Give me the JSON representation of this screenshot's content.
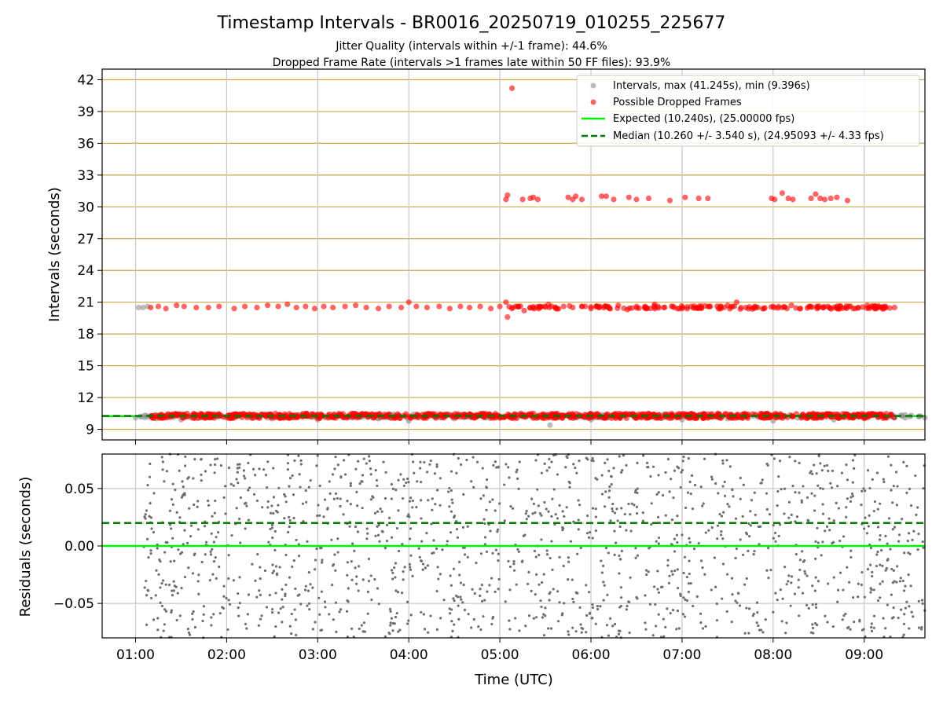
{
  "title": "Timestamp Intervals - BR0016_20250719_010255_225677",
  "subtitle_lines": [
    "Jitter Quality (intervals within +/-1 frame): 44.6%",
    "Dropped Frame Rate (intervals >1 frames late within 50 FF files): 93.9%"
  ],
  "colors": {
    "intervals": "#8f8f8f",
    "dropped": "#ff0000",
    "expected": "#00ee00",
    "median": "#007a00",
    "hgrid": "#c8a84a",
    "vgrid": "#c8c8c8",
    "residuals": "#6e6e6e"
  },
  "chart_data": [
    {
      "type": "scatter",
      "name": "intervals",
      "xlim": [
        "00:38",
        "09:40"
      ],
      "ylim": [
        8,
        43
      ],
      "ylabel": "Intervals (seconds)",
      "y_ticks": [
        "9",
        "12",
        "15",
        "18",
        "21",
        "24",
        "27",
        "30",
        "33",
        "36",
        "39",
        "42"
      ],
      "hgrid": true,
      "vgrid": true,
      "legend_position": "top-right",
      "legend": [
        "Intervals, max (41.245s), min (9.396s)",
        "Possible Dropped Frames",
        "Expected (10.240s), (25.00000 fps)",
        "Median (10.260 +/- 3.540 s), (24.95093 +/- 4.33 fps)"
      ],
      "expected_value": 10.24,
      "median_value": 10.26,
      "intervals_points": [
        [
          "01:02",
          20.5
        ],
        [
          "01:05",
          20.5
        ],
        [
          "01:08",
          20.6
        ],
        [
          "01:00",
          10.1
        ],
        [
          "01:06",
          10.3
        ],
        [
          "01:14",
          10.0
        ],
        [
          "01:30",
          9.9
        ],
        [
          "02:30",
          10.0
        ],
        [
          "03:00",
          9.9
        ],
        [
          "03:40",
          10.0
        ],
        [
          "04:00",
          9.8
        ],
        [
          "04:30",
          10.0
        ],
        [
          "05:10",
          10.0
        ],
        [
          "05:33",
          9.4
        ],
        [
          "06:00",
          9.9
        ],
        [
          "06:30",
          10.1
        ],
        [
          "07:00",
          9.9
        ],
        [
          "07:30",
          10.0
        ],
        [
          "08:00",
          9.8
        ],
        [
          "08:40",
          9.9
        ],
        [
          "09:00",
          10.0
        ],
        [
          "09:20",
          10.1
        ],
        [
          "09:30",
          10.2
        ],
        [
          "09:36",
          10.2
        ],
        [
          "09:40",
          10.1
        ]
      ],
      "dropped_points": [
        [
          "01:10",
          20.5
        ],
        [
          "01:15",
          20.6
        ],
        [
          "01:20",
          20.4
        ],
        [
          "01:27",
          20.7
        ],
        [
          "01:32",
          20.6
        ],
        [
          "01:40",
          20.5
        ],
        [
          "01:48",
          20.5
        ],
        [
          "01:55",
          20.6
        ],
        [
          "02:05",
          20.4
        ],
        [
          "02:12",
          20.6
        ],
        [
          "02:20",
          20.5
        ],
        [
          "02:27",
          20.7
        ],
        [
          "02:34",
          20.6
        ],
        [
          "02:40",
          20.8
        ],
        [
          "02:46",
          20.5
        ],
        [
          "02:52",
          20.6
        ],
        [
          "02:58",
          20.4
        ],
        [
          "03:04",
          20.6
        ],
        [
          "03:10",
          20.5
        ],
        [
          "03:18",
          20.6
        ],
        [
          "03:25",
          20.7
        ],
        [
          "03:32",
          20.5
        ],
        [
          "03:40",
          20.4
        ],
        [
          "03:47",
          20.6
        ],
        [
          "03:55",
          20.5
        ],
        [
          "04:00",
          21.0
        ],
        [
          "04:05",
          20.6
        ],
        [
          "04:12",
          20.5
        ],
        [
          "04:20",
          20.6
        ],
        [
          "04:27",
          20.4
        ],
        [
          "04:34",
          20.6
        ],
        [
          "04:40",
          20.5
        ],
        [
          "04:47",
          20.6
        ],
        [
          "04:54",
          20.4
        ],
        [
          "05:00",
          20.6
        ],
        [
          "05:04",
          21.0
        ],
        [
          "05:05",
          19.6
        ],
        [
          "05:08",
          20.4
        ],
        [
          "05:12",
          20.6
        ],
        [
          "05:16",
          20.2
        ],
        [
          "05:20",
          20.5
        ],
        [
          "05:26",
          20.6
        ],
        [
          "05:32",
          20.8
        ],
        [
          "05:37",
          20.4
        ],
        [
          "05:42",
          20.6
        ],
        [
          "05:48",
          20.5
        ],
        [
          "05:54",
          20.6
        ],
        [
          "06:00",
          20.4
        ],
        [
          "06:06",
          20.6
        ],
        [
          "06:12",
          20.5
        ],
        [
          "06:18",
          20.7
        ],
        [
          "06:24",
          20.3
        ],
        [
          "06:30",
          20.6
        ],
        [
          "06:36",
          20.4
        ],
        [
          "06:42",
          20.8
        ],
        [
          "06:48",
          20.5
        ],
        [
          "06:54",
          20.6
        ],
        [
          "07:00",
          20.4
        ],
        [
          "07:06",
          20.6
        ],
        [
          "07:12",
          20.5
        ],
        [
          "07:18",
          20.6
        ],
        [
          "07:24",
          20.4
        ],
        [
          "07:30",
          20.7
        ],
        [
          "07:36",
          21.0
        ],
        [
          "07:42",
          20.5
        ],
        [
          "07:48",
          20.6
        ],
        [
          "07:54",
          20.4
        ],
        [
          "08:00",
          20.6
        ],
        [
          "08:06",
          20.5
        ],
        [
          "08:12",
          20.7
        ],
        [
          "08:18",
          20.4
        ],
        [
          "08:24",
          20.6
        ],
        [
          "08:30",
          20.5
        ],
        [
          "08:36",
          20.6
        ],
        [
          "08:44",
          20.4
        ],
        [
          "08:50",
          20.6
        ],
        [
          "08:56",
          20.5
        ],
        [
          "09:02",
          20.7
        ],
        [
          "09:08",
          20.4
        ],
        [
          "09:14",
          20.6
        ],
        [
          "09:20",
          20.5
        ],
        [
          "05:08",
          41.2
        ],
        [
          "05:04",
          30.7
        ],
        [
          "05:05",
          31.1
        ],
        [
          "05:15",
          30.7
        ],
        [
          "05:20",
          30.8
        ],
        [
          "05:22",
          30.9
        ],
        [
          "05:25",
          30.7
        ],
        [
          "05:45",
          30.9
        ],
        [
          "05:48",
          30.7
        ],
        [
          "05:50",
          31.0
        ],
        [
          "05:54",
          30.7
        ],
        [
          "06:07",
          31.0
        ],
        [
          "06:10",
          31.0
        ],
        [
          "06:15",
          30.7
        ],
        [
          "06:25",
          30.9
        ],
        [
          "06:30",
          30.7
        ],
        [
          "06:38",
          30.8
        ],
        [
          "06:52",
          30.6
        ],
        [
          "07:02",
          30.9
        ],
        [
          "07:11",
          30.8
        ],
        [
          "07:17",
          30.8
        ],
        [
          "07:59",
          30.8
        ],
        [
          "08:01",
          30.7
        ],
        [
          "08:06",
          31.3
        ],
        [
          "08:10",
          30.8
        ],
        [
          "08:13",
          30.7
        ],
        [
          "08:25",
          30.8
        ],
        [
          "08:28",
          31.2
        ],
        [
          "08:31",
          30.8
        ],
        [
          "08:34",
          30.7
        ],
        [
          "08:38",
          30.8
        ],
        [
          "08:42",
          30.9
        ],
        [
          "08:49",
          30.6
        ]
      ]
    },
    {
      "type": "scatter",
      "name": "residuals",
      "xlim": [
        "00:38",
        "09:40"
      ],
      "ylim": [
        -0.08,
        0.08
      ],
      "xlabel": "Time (UTC)",
      "ylabel": "Residuals (seconds)",
      "x_ticks": [
        "01:00",
        "02:00",
        "03:00",
        "04:00",
        "05:00",
        "06:00",
        "07:00",
        "08:00",
        "09:00"
      ],
      "y_ticks": [
        "0.05",
        "0.00",
        "−0.05"
      ],
      "y_tick_values": [
        0.05,
        0.0,
        -0.05
      ],
      "hgrid": true,
      "vgrid": true,
      "expected_value": 0.0,
      "median_value": 0.02,
      "residuals_x_range": [
        "01:05",
        "09:40"
      ],
      "residuals_y_range": [
        -0.08,
        0.08
      ],
      "residual_point_count": 1500
    }
  ]
}
